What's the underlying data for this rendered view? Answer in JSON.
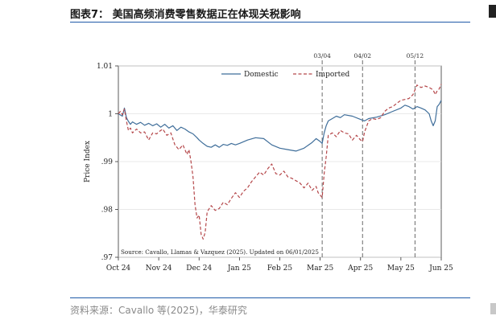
{
  "header": {
    "title": "图表7： 美国高频消费零售数据正在体现关税影响"
  },
  "footer": {
    "source": "资料来源：Cavallo 等(2025)，华泰研究"
  },
  "chart_data": {
    "type": "line",
    "title": "",
    "xlabel": "",
    "ylabel": "Price Index",
    "ylim": [
      0.97,
      1.01
    ],
    "yticks": [
      0.97,
      0.98,
      0.99,
      1.0,
      1.01
    ],
    "ytick_labels": [
      ".97",
      ".98",
      ".99",
      "1",
      "1.01"
    ],
    "xlim": [
      0,
      8
    ],
    "xticks": [
      0,
      1,
      2,
      3,
      4,
      5,
      6,
      7,
      8
    ],
    "xtick_labels": [
      "Oct 24",
      "Nov 24",
      "Dec 24",
      "Jan 25",
      "Feb 25",
      "Mar 25",
      "Apr 25",
      "May 25",
      "Jun 25"
    ],
    "legend": [
      "Domestic",
      "Imported"
    ],
    "legend_position": "top",
    "colors": {
      "domestic": "#3f6e9a",
      "imported": "#b5474a",
      "vline": "#6b6b6b"
    },
    "annotation_lines": [
      {
        "x": 5.05,
        "label": "03/04"
      },
      {
        "x": 6.05,
        "label": "04/02"
      },
      {
        "x": 7.35,
        "label": "05/12"
      }
    ],
    "note": "Source: Cavallo, Llamas & Vazquez (2025). Updated on 06/01/2025",
    "series": [
      {
        "name": "Domestic",
        "style": "solid",
        "x": [
          0,
          0.1,
          0.15,
          0.2,
          0.25,
          0.3,
          0.35,
          0.45,
          0.55,
          0.65,
          0.75,
          0.85,
          0.95,
          1.05,
          1.15,
          1.25,
          1.35,
          1.45,
          1.55,
          1.65,
          1.75,
          1.85,
          1.95,
          2.0,
          2.1,
          2.2,
          2.3,
          2.4,
          2.5,
          2.6,
          2.7,
          2.8,
          2.9,
          3.0,
          3.2,
          3.4,
          3.6,
          3.8,
          4.0,
          4.2,
          4.4,
          4.6,
          4.8,
          4.9,
          5.0,
          5.05,
          5.1,
          5.15,
          5.2,
          5.3,
          5.4,
          5.5,
          5.6,
          5.8,
          6.0,
          6.1,
          6.2,
          6.4,
          6.6,
          6.8,
          7.0,
          7.1,
          7.2,
          7.3,
          7.4,
          7.5,
          7.6,
          7.7,
          7.75,
          7.8,
          7.85,
          7.9,
          7.95,
          8.0
        ],
        "y": [
          1.0,
          0.9995,
          1.0012,
          0.9992,
          0.9984,
          0.9978,
          0.9983,
          0.9978,
          0.9982,
          0.9976,
          0.998,
          0.9975,
          0.9979,
          0.9972,
          0.9978,
          0.997,
          0.9975,
          0.9965,
          0.9972,
          0.9968,
          0.9962,
          0.9958,
          0.995,
          0.9945,
          0.9938,
          0.9932,
          0.993,
          0.9935,
          0.993,
          0.9936,
          0.9934,
          0.9938,
          0.9935,
          0.9938,
          0.9945,
          0.995,
          0.9948,
          0.9935,
          0.9928,
          0.9925,
          0.9922,
          0.9928,
          0.994,
          0.9948,
          0.9942,
          0.9938,
          0.996,
          0.9975,
          0.9985,
          0.999,
          0.9995,
          0.9992,
          0.9998,
          0.9995,
          0.9988,
          0.9985,
          0.999,
          0.9993,
          0.9998,
          1.0005,
          1.0012,
          1.0018,
          1.0015,
          1.001,
          1.0015,
          1.0012,
          1.0008,
          1.0,
          0.9985,
          0.9975,
          0.9985,
          1.0015,
          1.002,
          1.0028
        ]
      },
      {
        "name": "Imported",
        "style": "dashed",
        "x": [
          0,
          0.05,
          0.1,
          0.15,
          0.2,
          0.25,
          0.3,
          0.35,
          0.45,
          0.55,
          0.65,
          0.75,
          0.85,
          0.95,
          1.0,
          1.1,
          1.2,
          1.3,
          1.4,
          1.5,
          1.6,
          1.7,
          1.75,
          1.8,
          1.85,
          1.9,
          1.95,
          2.0,
          2.05,
          2.1,
          2.15,
          2.2,
          2.3,
          2.4,
          2.5,
          2.6,
          2.7,
          2.8,
          2.9,
          3.0,
          3.1,
          3.2,
          3.3,
          3.4,
          3.5,
          3.6,
          3.7,
          3.8,
          3.9,
          4.0,
          4.1,
          4.2,
          4.3,
          4.4,
          4.5,
          4.6,
          4.7,
          4.8,
          4.9,
          4.95,
          5.0,
          5.05,
          5.1,
          5.15,
          5.2,
          5.3,
          5.4,
          5.5,
          5.6,
          5.7,
          5.8,
          5.9,
          6.0,
          6.05,
          6.1,
          6.2,
          6.3,
          6.4,
          6.5,
          6.6,
          6.7,
          6.8,
          6.9,
          7.0,
          7.1,
          7.2,
          7.3,
          7.4,
          7.5,
          7.6,
          7.7,
          7.8,
          7.85,
          7.9,
          7.95,
          8.0
        ],
        "y": [
          1.0,
          1.0005,
          0.9998,
          1.001,
          0.9985,
          0.9965,
          0.997,
          0.996,
          0.9968,
          0.996,
          0.9962,
          0.9945,
          0.996,
          0.9958,
          0.9962,
          0.9968,
          0.9955,
          0.996,
          0.9935,
          0.9925,
          0.9935,
          0.9915,
          0.9925,
          0.99,
          0.9868,
          0.981,
          0.9782,
          0.9788,
          0.9748,
          0.9738,
          0.9752,
          0.9795,
          0.9808,
          0.9798,
          0.9802,
          0.9815,
          0.981,
          0.9823,
          0.9835,
          0.9825,
          0.9838,
          0.9845,
          0.9858,
          0.9868,
          0.9878,
          0.9872,
          0.9885,
          0.9895,
          0.9875,
          0.9872,
          0.988,
          0.9868,
          0.9865,
          0.986,
          0.9855,
          0.9845,
          0.9855,
          0.984,
          0.9848,
          0.9835,
          0.983,
          0.9825,
          0.9875,
          0.991,
          0.9955,
          0.996,
          0.9952,
          0.9965,
          0.996,
          0.9958,
          0.9945,
          0.9955,
          0.9945,
          0.9942,
          0.9962,
          0.9985,
          0.999,
          0.9988,
          0.9992,
          1.0005,
          1.0012,
          1.0015,
          1.0022,
          1.0028,
          1.003,
          1.0032,
          1.004,
          1.006,
          1.0055,
          1.0058,
          1.0055,
          1.005,
          1.004,
          1.0048,
          1.0052,
          1.0062
        ]
      }
    ]
  }
}
